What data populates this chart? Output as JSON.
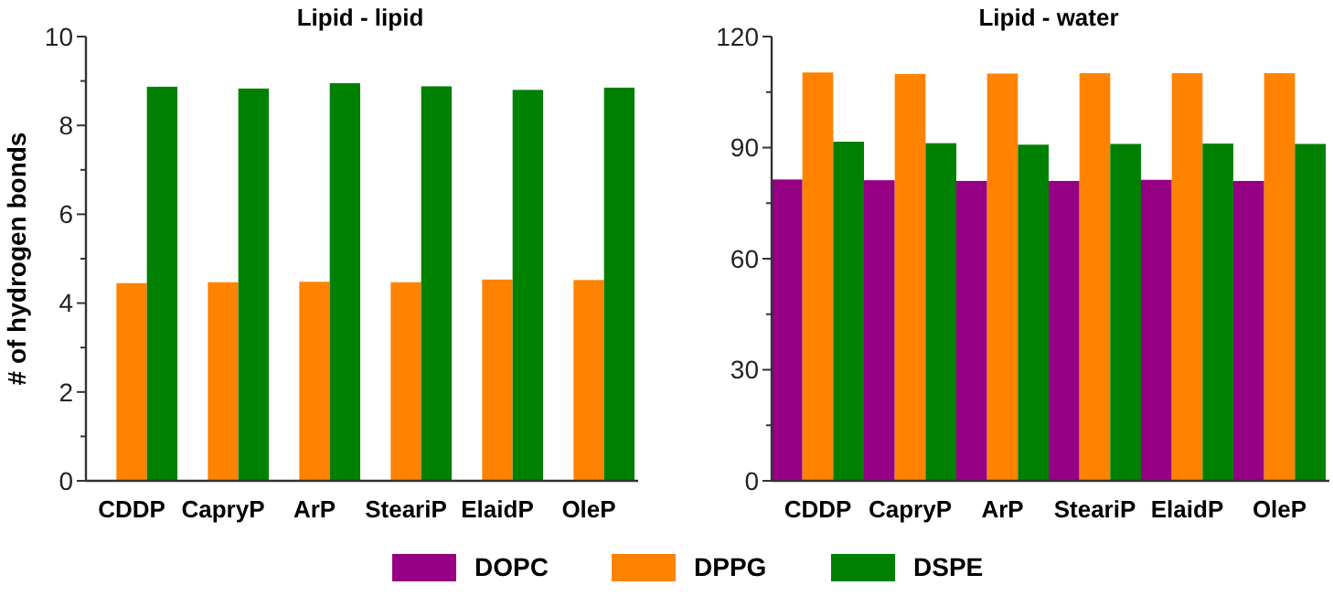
{
  "chart_data": [
    {
      "type": "bar",
      "title": "Lipid - lipid",
      "ylabel": "# of hydrogen bonds",
      "categories": [
        "CDDP",
        "CapryP",
        "ArP",
        "SteariP",
        "ElaidP",
        "OleP"
      ],
      "series": [
        {
          "color": "#960084",
          "values": [
            0,
            0,
            0,
            0,
            0,
            0
          ]
        },
        {
          "color": "#ff8200",
          "values": [
            4.45,
            4.47,
            4.48,
            4.47,
            4.53,
            4.52
          ]
        },
        {
          "color": "#008000",
          "values": [
            8.87,
            8.83,
            8.95,
            8.88,
            8.8,
            8.85
          ]
        }
      ],
      "ylim": [
        0,
        10
      ],
      "yticks": [
        0,
        {
          "value": 1,
          "label": null
        },
        2,
        {
          "value": 3,
          "label": null
        },
        4,
        {
          "value": 5,
          "label": null
        },
        6,
        {
          "value": 7,
          "label": null
        },
        8,
        {
          "value": 9,
          "label": null
        },
        10
      ],
      "grid": false
    },
    {
      "type": "bar",
      "title": "Lipid - water",
      "categories": [
        "CDDP",
        "CapryP",
        "ArP",
        "SteariP",
        "ElaidP",
        "OleP"
      ],
      "series": [
        {
          "name": "DOPC",
          "color": "#960084",
          "values": [
            81.4,
            81.2,
            81,
            81,
            81.3,
            81
          ]
        },
        {
          "name": "DPPG",
          "color": "#ff8200",
          "values": [
            110.3,
            109.9,
            110,
            110.1,
            110.1,
            110.1
          ]
        },
        {
          "name": "DSPE",
          "color": "#008000",
          "values": [
            91.6,
            91.2,
            90.8,
            91,
            91.1,
            91
          ]
        }
      ],
      "ylim": [
        0,
        120
      ],
      "yticks": [
        0,
        {
          "value": 15,
          "label": null
        },
        30,
        {
          "value": 45,
          "label": null
        },
        60,
        {
          "value": 75,
          "label": null
        },
        90,
        {
          "value": 105,
          "label": null
        },
        120
      ],
      "grid": false,
      "legend": "bottom"
    }
  ]
}
